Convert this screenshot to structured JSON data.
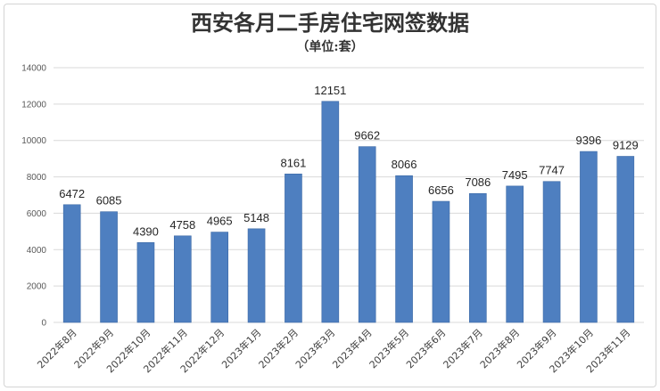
{
  "chart_data": {
    "type": "bar",
    "title": "西安各月二手房住宅网签数据",
    "subtitle": "（单位:套）",
    "categories": [
      "2022年8月",
      "2022年9月",
      "2022年10月",
      "2022年11月",
      "2022年12月",
      "2023年1月",
      "2023年2月",
      "2023年3月",
      "2023年4月",
      "2023年5月",
      "2023年6月",
      "2023年7月",
      "2023年8月",
      "2023年9月",
      "2023年10月",
      "2023年11月"
    ],
    "values": [
      6472,
      6085,
      4390,
      4758,
      4965,
      5148,
      8161,
      12151,
      9662,
      8066,
      6656,
      7086,
      7495,
      7747,
      9396,
      9129
    ],
    "ylim": [
      0,
      14000
    ],
    "yticks": [
      0,
      2000,
      4000,
      6000,
      8000,
      10000,
      12000,
      14000
    ],
    "grid": true,
    "legend": "none",
    "colors": {
      "bar": "#4e7fc0",
      "grid": "#d9d9d9"
    }
  }
}
